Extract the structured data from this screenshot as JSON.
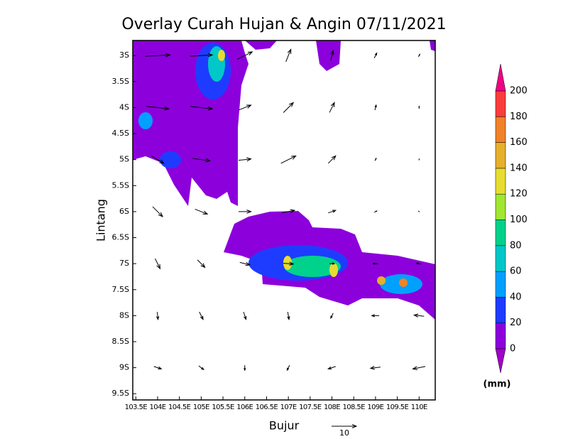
{
  "title": "Overlay Curah Hujan & Angin 07/11/2021",
  "xlabel": "Bujur",
  "ylabel": "Lintang",
  "xlim": [
    103.43,
    110.37
  ],
  "ylim": [
    -2.71,
    -9.62
  ],
  "xticks": [
    {
      "value": 103.5,
      "label": "103.5E"
    },
    {
      "value": 104,
      "label": "104E"
    },
    {
      "value": 104.5,
      "label": "104.5E"
    },
    {
      "value": 105,
      "label": "105E"
    },
    {
      "value": 105.5,
      "label": "105.5E"
    },
    {
      "value": 106,
      "label": "106E"
    },
    {
      "value": 106.5,
      "label": "106.5E"
    },
    {
      "value": 107,
      "label": "107E"
    },
    {
      "value": 107.5,
      "label": "107.5E"
    },
    {
      "value": 108,
      "label": "108E"
    },
    {
      "value": 108.5,
      "label": "108.5E"
    },
    {
      "value": 109,
      "label": "109E"
    },
    {
      "value": 109.5,
      "label": "109.5E"
    },
    {
      "value": 110,
      "label": "110E"
    }
  ],
  "yticks": [
    {
      "value": -3,
      "label": "3S"
    },
    {
      "value": -3.5,
      "label": "3.5S"
    },
    {
      "value": -4,
      "label": "4S"
    },
    {
      "value": -4.5,
      "label": "4.5S"
    },
    {
      "value": -5,
      "label": "5S"
    },
    {
      "value": -5.5,
      "label": "5.5S"
    },
    {
      "value": -6,
      "label": "6S"
    },
    {
      "value": -6.5,
      "label": "6.5S"
    },
    {
      "value": -7,
      "label": "7S"
    },
    {
      "value": -7.5,
      "label": "7.5S"
    },
    {
      "value": -8,
      "label": "8S"
    },
    {
      "value": -8.5,
      "label": "8.5S"
    },
    {
      "value": -9,
      "label": "9S"
    },
    {
      "value": -9.5,
      "label": "9.5S"
    }
  ],
  "wind": {
    "lon": [
      104,
      105,
      106,
      107,
      108,
      109,
      110
    ],
    "lat": [
      -3,
      -4,
      -5,
      -6,
      -7,
      -8,
      -9
    ],
    "u": [
      [
        10,
        9,
        6,
        2,
        1,
        1,
        0.5
      ],
      [
        9,
        9,
        5,
        4,
        2,
        0.5,
        0
      ],
      [
        5,
        7,
        5,
        6,
        3,
        0.5,
        0
      ],
      [
        4,
        5,
        5,
        5,
        3,
        1,
        -0.3
      ],
      [
        2,
        3,
        4,
        4,
        2,
        -2,
        -2
      ],
      [
        0.3,
        1.5,
        1,
        0.5,
        -1,
        -3,
        -4
      ],
      [
        3,
        2,
        0,
        -1,
        -3,
        -4,
        -5
      ]
    ],
    "v": [
      [
        0.5,
        0.5,
        3,
        5,
        4,
        2,
        1
      ],
      [
        -1,
        -1,
        2,
        4,
        4,
        2,
        1
      ],
      [
        -3,
        -1,
        0.5,
        3,
        3,
        1,
        0.5
      ],
      [
        -4,
        -2,
        0,
        1,
        1,
        0.5,
        0.3
      ],
      [
        -4,
        -3,
        -1,
        -0.3,
        0,
        0,
        0.3
      ],
      [
        -3,
        -3,
        -3,
        -3,
        -2,
        0,
        0.5
      ],
      [
        -1,
        -1.5,
        -2,
        -2,
        -1,
        -0.5,
        -1
      ]
    ],
    "reference": 10
  },
  "colorbar": {
    "levels": [
      0,
      20,
      40,
      60,
      80,
      100,
      120,
      140,
      160,
      180,
      200
    ],
    "colors": [
      "#8c00dc",
      "#1e3cff",
      "#00a0ff",
      "#00c8c8",
      "#00d28c",
      "#a0e632",
      "#e6dc32",
      "#e6af2d",
      "#f08228",
      "#fa3c3c"
    ],
    "under_color": "#a000c8",
    "over_color": "#f00082",
    "units": "(mm)"
  }
}
